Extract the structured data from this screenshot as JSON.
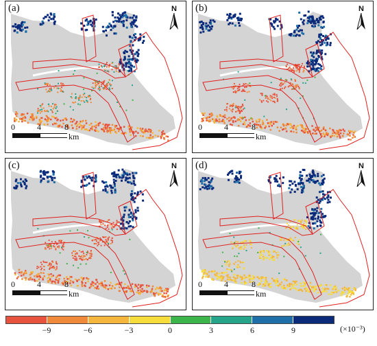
{
  "panels": [
    {
      "label": "(a)"
    },
    {
      "label": "(b)"
    },
    {
      "label": "(c)"
    },
    {
      "label": "(d)"
    }
  ],
  "north_label": "N",
  "scalebar": {
    "ticks": [
      "0",
      "4",
      "8"
    ],
    "unit": "km"
  },
  "legend": {
    "colors": [
      "#e8533f",
      "#f08a3a",
      "#f4b63c",
      "#f7dd3b",
      "#3cb54a",
      "#27a58a",
      "#1f6fa8",
      "#0b2a7a"
    ],
    "ticks": [
      "−9",
      "−6",
      "−3",
      "0",
      "3",
      "6",
      "9"
    ],
    "unit": "(×10⁻³)"
  },
  "colors": {
    "land": "#d4d4d4",
    "boundary": "#e02020",
    "positive_strong": "#0b2a7a",
    "negative_strong": "#e8533f"
  }
}
